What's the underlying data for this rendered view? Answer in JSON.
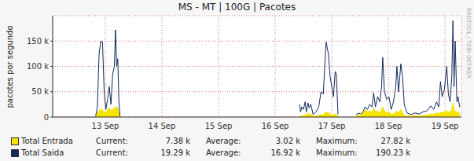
{
  "chart_data": {
    "type": "line",
    "title": "MS - MT | 100G | Pacotes",
    "y_label": "pacotes por segundo",
    "side_text": "RRDTOOL / TOBI OETIKER",
    "grid": true,
    "legend": "bottom",
    "xlim": [
      12.57,
      19.79
    ],
    "xticks": [
      {
        "value": 13.5,
        "label": "13 Sep"
      },
      {
        "value": 14.5,
        "label": "14 Sep"
      },
      {
        "value": 15.5,
        "label": "15 Sep"
      },
      {
        "value": 16.5,
        "label": "16 Sep"
      },
      {
        "value": 17.5,
        "label": "17 Sep"
      },
      {
        "value": 18.5,
        "label": "18 Sep"
      },
      {
        "value": 19.5,
        "label": "19 Sep"
      }
    ],
    "ylim": [
      0,
      200000
    ],
    "yticks": [
      0,
      {
        "value": 50000,
        "label": "50 k"
      },
      {
        "value": 100000,
        "label": "100 k"
      },
      {
        "value": 150000,
        "label": "150 k"
      }
    ],
    "x": [
      13.33,
      13.36,
      13.39,
      13.42,
      13.45,
      13.48,
      13.51,
      13.54,
      13.57,
      13.6,
      13.63,
      13.66,
      13.68,
      13.7,
      13.72,
      13.74,
      13.76,
      13.8,
      16.93,
      16.95,
      16.97,
      17.0,
      17.03,
      17.05,
      17.08,
      17.1,
      17.13,
      17.17,
      17.22,
      17.27,
      17.31,
      17.35,
      17.38,
      17.4,
      17.44,
      17.47,
      17.5,
      17.53,
      17.56,
      17.58,
      17.61,
      17.65,
      17.93,
      17.97,
      18.01,
      18.05,
      18.09,
      18.13,
      18.17,
      18.21,
      18.24,
      18.27,
      18.31,
      18.35,
      18.38,
      18.4,
      18.43,
      18.47,
      18.51,
      18.55,
      18.59,
      18.63,
      18.65,
      18.68,
      18.72,
      18.75,
      18.78,
      18.83,
      18.9,
      18.97,
      19.04,
      19.11,
      19.18,
      19.25,
      19.3,
      19.35,
      19.39,
      19.42,
      19.45,
      19.49,
      19.53,
      19.56,
      19.59,
      19.62,
      19.64,
      19.66,
      19.68,
      19.71,
      19.73,
      19.76
    ],
    "series": [
      {
        "name": "Total Entrada",
        "type": "area",
        "color": "#f5e400",
        "values": [
          1000,
          8000,
          12000,
          15000,
          14000,
          10000,
          8000,
          15000,
          18000,
          12000,
          15000,
          18000,
          20000,
          20000,
          18000,
          8000,
          500,
          null,
          2000,
          1000,
          3000,
          2000,
          5000,
          2000,
          8000,
          5000,
          6000,
          1000,
          2000,
          3000,
          5000,
          4000,
          8000,
          10000,
          8000,
          6000,
          5000,
          3000,
          6000,
          5000,
          500,
          null,
          3000,
          5000,
          2000,
          8000,
          15000,
          10000,
          12000,
          8000,
          18000,
          10000,
          12000,
          8000,
          15000,
          20000,
          12000,
          8000,
          10000,
          5000,
          6000,
          10000,
          12000,
          8000,
          15000,
          8000,
          3000,
          2000,
          2000,
          3000,
          2000,
          3000,
          4000,
          6000,
          5000,
          8000,
          6000,
          10000,
          8000,
          10000,
          12000,
          10000,
          10000,
          15000,
          27820,
          15000,
          12000,
          8000,
          10000,
          7380
        ],
        "stats": [
          {
            "name": "Current:",
            "value": 7380,
            "label": "7.38 k"
          },
          {
            "name": "Average:",
            "value": 3020,
            "label": "3.02 k"
          },
          {
            "name": "Maximum:",
            "value": 27820,
            "label": "27.82 k"
          }
        ]
      },
      {
        "name": "Total Saida",
        "type": "line",
        "color": "#132a5c",
        "values": [
          2000,
          20000,
          125000,
          150000,
          148000,
          50000,
          15000,
          35000,
          60000,
          25000,
          85000,
          100000,
          172000,
          100000,
          115000,
          30000,
          1000,
          null,
          25000,
          10000,
          20000,
          15000,
          30000,
          10000,
          28000,
          18000,
          25000,
          5000,
          10000,
          20000,
          50000,
          45000,
          110000,
          148000,
          125000,
          80000,
          60000,
          40000,
          90000,
          85000,
          5000,
          null,
          5000,
          8000,
          6000,
          10000,
          20000,
          15000,
          25000,
          20000,
          48000,
          20000,
          40000,
          30000,
          60000,
          118000,
          50000,
          35000,
          40000,
          15000,
          30000,
          60000,
          100000,
          50000,
          105000,
          80000,
          25000,
          8000,
          5000,
          8000,
          6000,
          10000,
          12000,
          22000,
          15000,
          30000,
          20000,
          70000,
          40000,
          55000,
          100000,
          45000,
          30000,
          80000,
          190230,
          60000,
          150000,
          30000,
          40000,
          19290
        ],
        "stats": [
          {
            "name": "Current:",
            "value": 19290,
            "label": "19.29 k"
          },
          {
            "name": "Average:",
            "value": 16920,
            "label": "16.92 k"
          },
          {
            "name": "Maximum:",
            "value": 190230,
            "label": "190.23 k"
          }
        ]
      }
    ]
  }
}
